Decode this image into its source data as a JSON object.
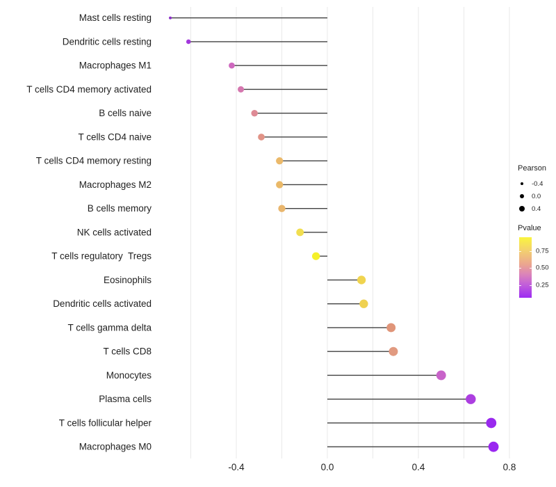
{
  "chart_data": {
    "type": "lollipop",
    "orientation": "horizontal",
    "grid": "vertical gridlines only, light gray, white background",
    "legend_position": "right",
    "xlim": [
      -0.76,
      0.8
    ],
    "x_ticks": [
      {
        "value": -0.4,
        "label": "-0.4"
      },
      {
        "value": 0.0,
        "label": "0.0"
      },
      {
        "value": 0.4,
        "label": "0.4"
      },
      {
        "value": 0.8,
        "label": "0.8"
      }
    ],
    "x_gridlines": [
      -0.6,
      -0.4,
      -0.2,
      0.0,
      0.2,
      0.4,
      0.6,
      0.8
    ],
    "rows": [
      {
        "label": "Mast cells resting",
        "pearson": -0.69,
        "dot_color": "#8B2FC8"
      },
      {
        "label": "Dendritic cells resting",
        "pearson": -0.61,
        "dot_color": "#A238DC"
      },
      {
        "label": "Macrophages M1",
        "pearson": -0.42,
        "dot_color": "#CE68BE"
      },
      {
        "label": "T cells CD4 memory activated",
        "pearson": -0.38,
        "dot_color": "#D577AF"
      },
      {
        "label": "B cells naive",
        "pearson": -0.32,
        "dot_color": "#DE8A95"
      },
      {
        "label": "T cells CD4 naive",
        "pearson": -0.29,
        "dot_color": "#E19387"
      },
      {
        "label": "T cells CD4 memory resting",
        "pearson": -0.21,
        "dot_color": "#EBB96A"
      },
      {
        "label": "Macrophages M2",
        "pearson": -0.21,
        "dot_color": "#EAB968"
      },
      {
        "label": "B cells memory",
        "pearson": -0.2,
        "dot_color": "#E9B66D"
      },
      {
        "label": "NK cells activated",
        "pearson": -0.12,
        "dot_color": "#F1DE50"
      },
      {
        "label": "T cells regulatory  Tregs",
        "pearson": -0.05,
        "dot_color": "#F5F02A"
      },
      {
        "label": "Eosinophils",
        "pearson": 0.15,
        "dot_color": "#F0D44F"
      },
      {
        "label": "Dendritic cells activated",
        "pearson": 0.16,
        "dot_color": "#EFD150"
      },
      {
        "label": "T cells gamma delta",
        "pearson": 0.28,
        "dot_color": "#E09579"
      },
      {
        "label": "T cells CD8",
        "pearson": 0.29,
        "dot_color": "#E19A80"
      },
      {
        "label": "Monocytes",
        "pearson": 0.5,
        "dot_color": "#C863C9"
      },
      {
        "label": "Plasma cells",
        "pearson": 0.63,
        "dot_color": "#AC3EE0"
      },
      {
        "label": "T cells follicular helper",
        "pearson": 0.72,
        "dot_color": "#9929EE"
      },
      {
        "label": "Macrophages M0",
        "pearson": 0.73,
        "dot_color": "#9A27F0"
      }
    ],
    "legend": {
      "pearson": {
        "title": "Pearson",
        "entries": [
          {
            "label": "-0.4",
            "r": 2.4
          },
          {
            "label": "0.0",
            "r": 3.3
          },
          {
            "label": "0.4",
            "r": 4.1
          }
        ]
      },
      "pvalue": {
        "title": "Pvalue",
        "ticks": [
          {
            "label": "0.75",
            "value": 0.75
          },
          {
            "label": "0.50",
            "value": 0.5
          },
          {
            "label": "0.25",
            "value": 0.25
          }
        ],
        "gradient": [
          {
            "color": "#FAF53E",
            "pos": 0
          },
          {
            "color": "#F3D06F",
            "pos": 22
          },
          {
            "color": "#EBA590",
            "pos": 45
          },
          {
            "color": "#DA82BB",
            "pos": 62
          },
          {
            "color": "#C25FD9",
            "pos": 78
          },
          {
            "color": "#9D2BF2",
            "pos": 100
          }
        ]
      }
    },
    "colors": {
      "stem": "#404040",
      "gridline": "#E9E9E9",
      "axis_text": "#1f1f1f",
      "background": "#FFFFFF"
    }
  }
}
